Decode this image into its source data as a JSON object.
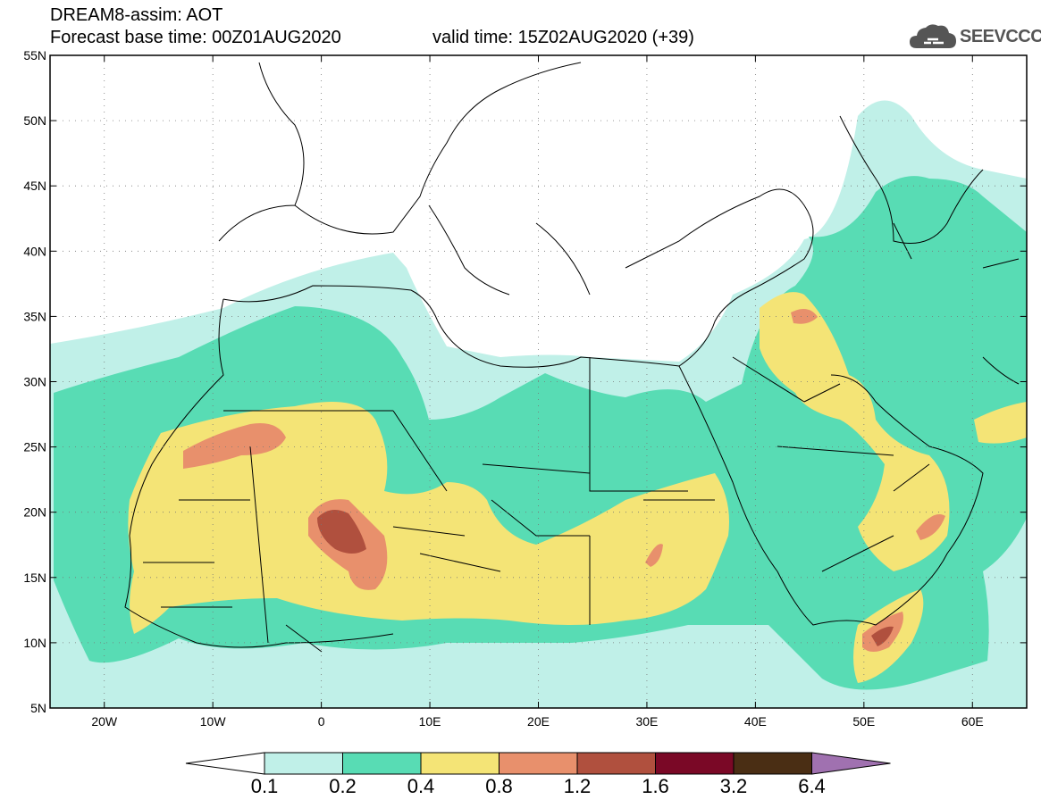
{
  "title": {
    "model": "DREAM8-assim: AOT",
    "base_time": "Forecast base time: 00Z01AUG2020",
    "valid_time": "valid time: 15Z02AUG2020 (+39)"
  },
  "logo": {
    "text": "SEEVCCC",
    "icon": "cloud-icon"
  },
  "map": {
    "lat_labels": [
      "55N",
      "50N",
      "45N",
      "40N",
      "35N",
      "30N",
      "25N",
      "20N",
      "15N",
      "10N",
      "5N"
    ],
    "lon_labels": [
      "20W",
      "10W",
      "0",
      "10E",
      "20E",
      "30E",
      "40E",
      "50E",
      "60E"
    ],
    "extent": {
      "lon": [
        -25,
        65
      ],
      "lat": [
        5,
        55
      ]
    }
  },
  "colorbar": {
    "labels": [
      "0.1",
      "0.2",
      "0.4",
      "0.8",
      "1.2",
      "1.6",
      "3.2",
      "6.4"
    ],
    "colors": [
      "#ffffff",
      "#c0f0e8",
      "#58dcb4",
      "#f4e476",
      "#e8906c",
      "#b0503e",
      "#7a0826",
      "#4a2e14",
      "#a071b0"
    ]
  }
}
